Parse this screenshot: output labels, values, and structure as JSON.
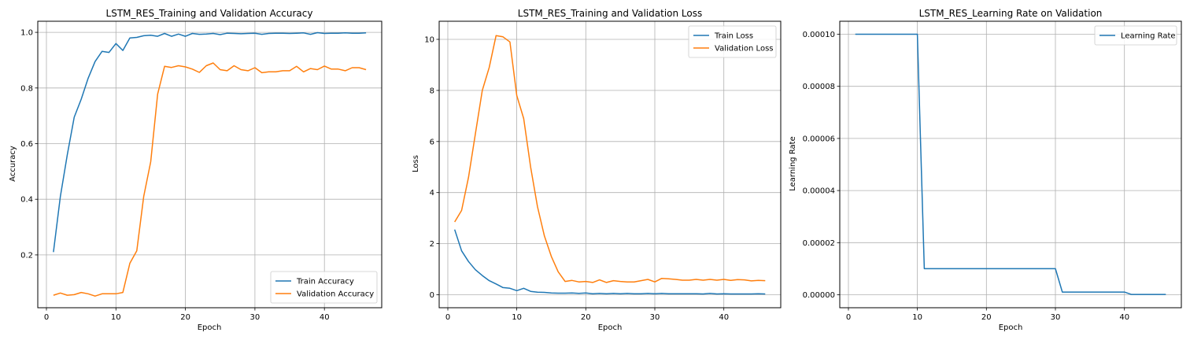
{
  "colors": {
    "train": "#1f77b4",
    "validation": "#ff7f0e",
    "grid": "#b0b0b0"
  },
  "chart_data": [
    {
      "type": "line",
      "title": "LSTM_RES_Training and Validation Accuracy",
      "xlabel": "Epoch",
      "ylabel": "Accuracy",
      "xlim": [
        -1.25,
        48.25
      ],
      "ylim": [
        0.01,
        1.04
      ],
      "xticks": [
        0,
        10,
        20,
        30,
        40
      ],
      "xtick_labels": [
        "0",
        "10",
        "20",
        "30",
        "40"
      ],
      "yticks": [
        0.2,
        0.4,
        0.6,
        0.8,
        1.0
      ],
      "ytick_labels": [
        "0.2",
        "0.4",
        "0.6",
        "0.8",
        "1.0"
      ],
      "grid": true,
      "legend_position": "lower-right",
      "x": [
        1,
        2,
        3,
        4,
        5,
        6,
        7,
        8,
        9,
        10,
        11,
        12,
        13,
        14,
        15,
        16,
        17,
        18,
        19,
        20,
        21,
        22,
        23,
        24,
        25,
        26,
        27,
        28,
        29,
        30,
        31,
        32,
        33,
        34,
        35,
        36,
        37,
        38,
        39,
        40,
        41,
        42,
        43,
        44,
        45,
        46
      ],
      "series": [
        {
          "name": "Train Accuracy",
          "color": "#1f77b4",
          "values": [
            0.21,
            0.41,
            0.56,
            0.695,
            0.76,
            0.835,
            0.895,
            0.932,
            0.928,
            0.96,
            0.935,
            0.98,
            0.982,
            0.988,
            0.99,
            0.986,
            0.996,
            0.986,
            0.994,
            0.986,
            0.996,
            0.993,
            0.994,
            0.996,
            0.992,
            0.997,
            0.996,
            0.995,
            0.996,
            0.997,
            0.993,
            0.996,
            0.997,
            0.997,
            0.996,
            0.997,
            0.998,
            0.993,
            0.999,
            0.996,
            0.997,
            0.997,
            0.998,
            0.997,
            0.997,
            0.998
          ]
        },
        {
          "name": "Validation Accuracy",
          "color": "#ff7f0e",
          "values": [
            0.055,
            0.063,
            0.055,
            0.057,
            0.065,
            0.06,
            0.052,
            0.06,
            0.06,
            0.06,
            0.065,
            0.17,
            0.215,
            0.41,
            0.535,
            0.778,
            0.878,
            0.874,
            0.88,
            0.876,
            0.868,
            0.856,
            0.88,
            0.89,
            0.866,
            0.862,
            0.88,
            0.866,
            0.862,
            0.873,
            0.855,
            0.858,
            0.858,
            0.862,
            0.862,
            0.878,
            0.858,
            0.87,
            0.866,
            0.879,
            0.868,
            0.868,
            0.862,
            0.873,
            0.873,
            0.866
          ]
        }
      ]
    },
    {
      "type": "line",
      "title": "LSTM_RES_Training and Validation Loss",
      "xlabel": "Epoch",
      "ylabel": "Loss",
      "xlim": [
        -1.25,
        48.25
      ],
      "ylim": [
        -0.51,
        10.71
      ],
      "xticks": [
        0,
        10,
        20,
        30,
        40
      ],
      "xtick_labels": [
        "0",
        "10",
        "20",
        "30",
        "40"
      ],
      "yticks": [
        0,
        2,
        4,
        6,
        8,
        10
      ],
      "ytick_labels": [
        "0",
        "2",
        "4",
        "6",
        "8",
        "10"
      ],
      "grid": true,
      "legend_position": "top-right",
      "x": [
        1,
        2,
        3,
        4,
        5,
        6,
        7,
        8,
        9,
        10,
        11,
        12,
        13,
        14,
        15,
        16,
        17,
        18,
        19,
        20,
        21,
        22,
        23,
        24,
        25,
        26,
        27,
        28,
        29,
        30,
        31,
        32,
        33,
        34,
        35,
        36,
        37,
        38,
        39,
        40,
        41,
        42,
        43,
        44,
        45,
        46
      ],
      "series": [
        {
          "name": "Train Loss",
          "color": "#1f77b4",
          "values": [
            2.55,
            1.72,
            1.3,
            0.98,
            0.75,
            0.55,
            0.42,
            0.28,
            0.25,
            0.16,
            0.25,
            0.13,
            0.1,
            0.09,
            0.07,
            0.06,
            0.06,
            0.07,
            0.05,
            0.07,
            0.04,
            0.05,
            0.04,
            0.05,
            0.04,
            0.05,
            0.04,
            0.04,
            0.05,
            0.04,
            0.05,
            0.04,
            0.04,
            0.04,
            0.04,
            0.04,
            0.03,
            0.05,
            0.03,
            0.04,
            0.03,
            0.03,
            0.03,
            0.03,
            0.04,
            0.03
          ]
        },
        {
          "name": "Validation Loss",
          "color": "#ff7f0e",
          "values": [
            2.85,
            3.3,
            4.6,
            6.3,
            8.0,
            8.9,
            10.15,
            10.1,
            9.9,
            7.8,
            6.9,
            5.0,
            3.45,
            2.3,
            1.5,
            0.9,
            0.52,
            0.56,
            0.5,
            0.52,
            0.48,
            0.58,
            0.48,
            0.55,
            0.52,
            0.5,
            0.5,
            0.55,
            0.6,
            0.5,
            0.64,
            0.62,
            0.6,
            0.57,
            0.57,
            0.6,
            0.57,
            0.6,
            0.57,
            0.6,
            0.56,
            0.59,
            0.58,
            0.54,
            0.56,
            0.55
          ]
        }
      ]
    },
    {
      "type": "line",
      "title": "LSTM_RES_Learning Rate on Validation",
      "xlabel": "Epoch",
      "ylabel": "Learning Rate",
      "xlim": [
        -1.25,
        48.25
      ],
      "ylim": [
        -5e-06,
        0.000105
      ],
      "xticks": [
        0,
        10,
        20,
        30,
        40
      ],
      "xtick_labels": [
        "0",
        "10",
        "20",
        "30",
        "40"
      ],
      "yticks": [
        0,
        2e-05,
        4e-05,
        6e-05,
        8e-05,
        0.0001
      ],
      "ytick_labels": [
        "0.00000",
        "0.00002",
        "0.00004",
        "0.00006",
        "0.00008",
        "0.00010"
      ],
      "grid": true,
      "legend_position": "top-right",
      "x": [
        1,
        10,
        11,
        30,
        31,
        40,
        41,
        46
      ],
      "series": [
        {
          "name": "Learning Rate",
          "color": "#1f77b4",
          "values": [
            0.0001,
            0.0001,
            1e-05,
            1e-05,
            1e-06,
            1e-06,
            1e-07,
            1e-07
          ]
        }
      ]
    }
  ]
}
